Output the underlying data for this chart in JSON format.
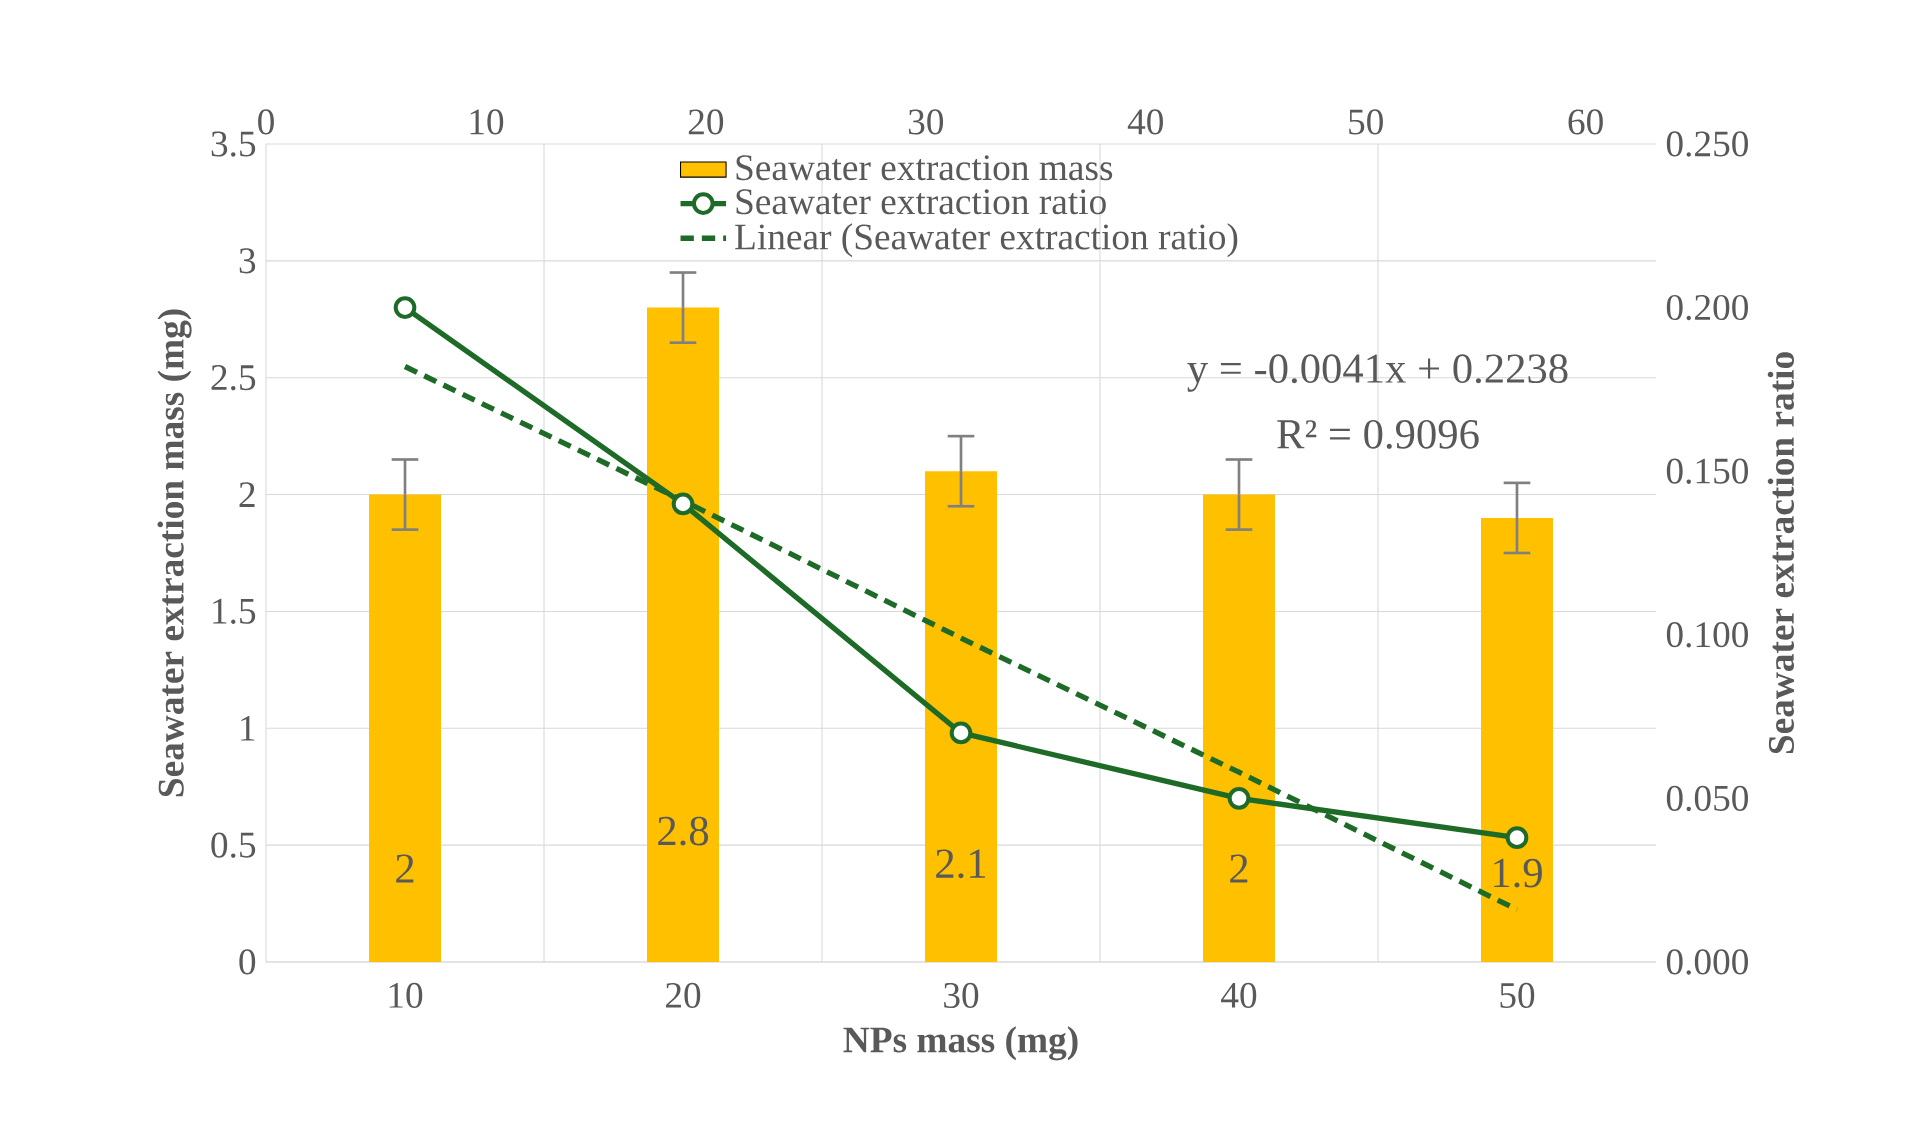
{
  "chart_data": {
    "type": "bar",
    "xlabel": "NPs mass (mg)",
    "ylabel": "Seawater extraction mass (mg)",
    "y2label": "Seawater extraction ratio",
    "categories": [
      "10",
      "20",
      "30",
      "40",
      "50"
    ],
    "series": [
      {
        "name": "Seawater extraction mass",
        "color": "#ffc000",
        "values": [
          2,
          2.8,
          2.1,
          2,
          1.9
        ],
        "errors": [
          0.15,
          0.15,
          0.15,
          0.15,
          0.15
        ],
        "value_labels": [
          "2",
          "2.8",
          "2.1",
          "2",
          "1.9"
        ]
      },
      {
        "name": "Seawater extraction ratio",
        "type": "line",
        "axis": "y2",
        "color": "#1e6b28",
        "marker": "circle",
        "line_style": "solid",
        "values": [
          0.2,
          0.14,
          0.07,
          0.05,
          0.038
        ]
      },
      {
        "name": "Linear (Seawater extraction ratio)",
        "type": "line",
        "axis": "y2",
        "color": "#1e6b28",
        "marker": "none",
        "line_style": "dashed",
        "values": [
          0.182,
          0.141,
          0.099,
          0.058,
          0.016
        ]
      }
    ],
    "ylim": [
      0,
      3.5
    ],
    "yticks": [
      0,
      0.5,
      1,
      1.5,
      2,
      2.5,
      3,
      3.5
    ],
    "y2lim": [
      0,
      0.25
    ],
    "y2ticks": [
      {
        "value": 0,
        "label": "0.000"
      },
      {
        "value": 0.05,
        "label": "0.050"
      },
      {
        "value": 0.1,
        "label": "0.100"
      },
      {
        "value": 0.15,
        "label": "0.150"
      },
      {
        "value": 0.2,
        "label": "0.200"
      },
      {
        "value": 0.25,
        "label": "0.250"
      }
    ],
    "x2lim": [
      0,
      63.2
    ],
    "x2ticks": [
      0,
      10,
      20,
      30,
      40,
      50,
      60
    ],
    "annotations": [
      "y = -0.0041x + 0.2238",
      "R² = 0.9096"
    ],
    "grid": true,
    "legend": "top"
  }
}
